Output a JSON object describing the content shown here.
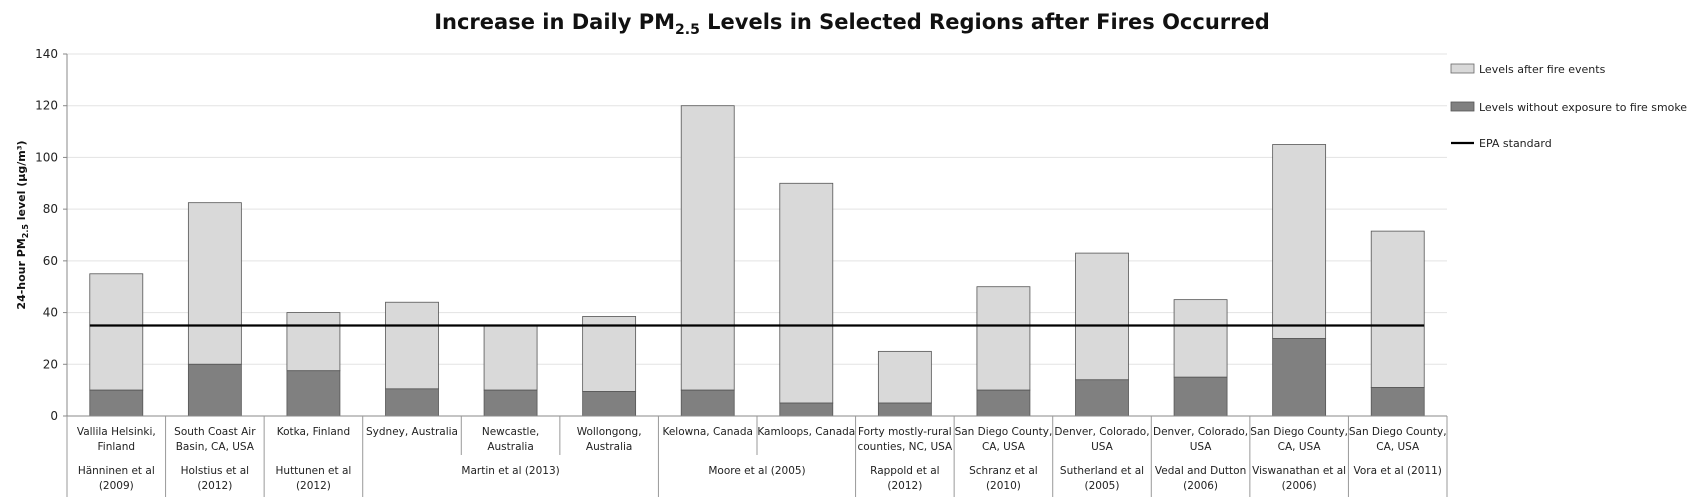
{
  "chart_data": {
    "type": "bar",
    "stacked": true,
    "title": "Increase in Daily PM2.5 Levels in Selected Regions after Fires Occurred",
    "title_parts": {
      "before": "Increase in Daily PM",
      "subscript": "2.5",
      "after": " Levels in Selected Regions after Fires Occurred"
    },
    "ylabel": "24-hour PM2.5 level (µg/m³)",
    "ylabel_parts": {
      "before": "24-hour PM",
      "subscript": "2.5",
      "after": " level (µg/m³)"
    },
    "ylim": [
      0,
      140
    ],
    "yticks": [
      0,
      20,
      40,
      60,
      80,
      100,
      120,
      140
    ],
    "grid": true,
    "legend_position": "right",
    "colors": {
      "after": "#d9d9d9",
      "without": "#808080",
      "epa": "#000000"
    },
    "categories": [
      [
        "Vallila Helsinki,",
        "Finland"
      ],
      [
        "South Coast Air",
        "Basin, CA, USA"
      ],
      [
        "Kotka, Finland"
      ],
      [
        "Sydney, Australia"
      ],
      [
        "Newcastle,",
        "Australia"
      ],
      [
        "Wollongong,",
        "Australia"
      ],
      [
        "Kelowna, Canada"
      ],
      [
        "Kamloops, Canada"
      ],
      [
        "Forty mostly-rural",
        "counties, NC, USA"
      ],
      [
        "San Diego County,",
        "CA, USA"
      ],
      [
        "Denver, Colorado,",
        "USA"
      ],
      [
        "Denver, Colorado,",
        "USA"
      ],
      [
        "San Diego County,",
        "CA, USA"
      ],
      [
        "San Diego County,",
        "CA, USA"
      ]
    ],
    "studies": [
      {
        "start": 0,
        "span": 1,
        "label": [
          "Hänninen et al",
          "(2009)"
        ]
      },
      {
        "start": 1,
        "span": 1,
        "label": [
          "Holstius et al",
          "(2012)"
        ]
      },
      {
        "start": 2,
        "span": 1,
        "label": [
          "Huttunen et al",
          "(2012)"
        ]
      },
      {
        "start": 3,
        "span": 3,
        "label": [
          "Martin et al (2013)"
        ]
      },
      {
        "start": 6,
        "span": 2,
        "label": [
          "Moore et al (2005)"
        ]
      },
      {
        "start": 8,
        "span": 1,
        "label": [
          "Rappold et al",
          "(2012)"
        ]
      },
      {
        "start": 9,
        "span": 1,
        "label": [
          "Schranz et al",
          "(2010)"
        ]
      },
      {
        "start": 10,
        "span": 1,
        "label": [
          "Sutherland et al",
          "(2005)"
        ]
      },
      {
        "start": 11,
        "span": 1,
        "label": [
          "Vedal and Dutton",
          "(2006)"
        ]
      },
      {
        "start": 12,
        "span": 1,
        "label": [
          "Viswanathan et al",
          "(2006)"
        ]
      },
      {
        "start": 13,
        "span": 1,
        "label": [
          "Vora et al (2011)"
        ]
      }
    ],
    "series": [
      {
        "name": "Levels without exposure to fire smoke",
        "values": [
          10,
          20,
          17.5,
          10.5,
          10,
          9.5,
          10,
          5,
          5,
          10,
          14,
          15,
          30,
          11
        ]
      },
      {
        "name": "Levels after fire events",
        "values": [
          55,
          82.5,
          40,
          44,
          35,
          38.5,
          120,
          90,
          25,
          50,
          63,
          45,
          105,
          71.5
        ]
      }
    ],
    "epa_standard": {
      "name": "EPA standard",
      "value": 35
    }
  }
}
